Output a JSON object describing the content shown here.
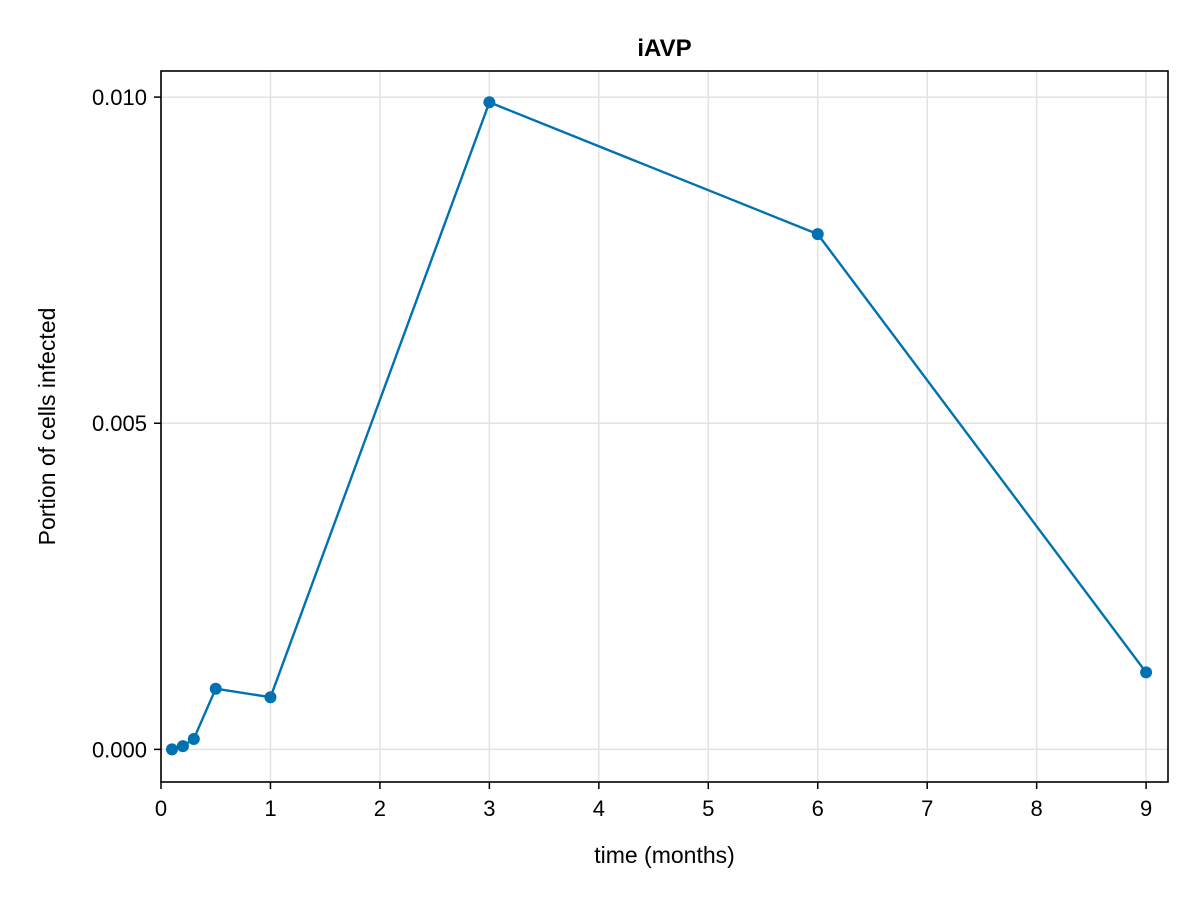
{
  "chart_data": {
    "type": "line",
    "title": "iAVP",
    "xlabel": "time (months)",
    "ylabel": "Portion of cells infected",
    "xlim": [
      0,
      9.2
    ],
    "ylim": [
      -0.0005,
      0.0104
    ],
    "x_ticks": [
      0,
      1,
      2,
      3,
      4,
      5,
      6,
      7,
      8,
      9
    ],
    "x_tick_labels": [
      "0",
      "1",
      "2",
      "3",
      "4",
      "5",
      "6",
      "7",
      "8",
      "9"
    ],
    "y_ticks": [
      0.0,
      0.005,
      0.01
    ],
    "y_tick_labels": [
      "0.000",
      "0.005",
      "0.010"
    ],
    "grid": true,
    "color": "#0072b2",
    "series": [
      {
        "x": [
          0.1,
          0.2,
          0.3,
          0.5,
          1,
          3,
          6,
          9
        ],
        "y": [
          0.0,
          5e-05,
          0.00016,
          0.00093,
          0.0008,
          0.00992,
          0.0079,
          0.00118
        ]
      }
    ]
  }
}
